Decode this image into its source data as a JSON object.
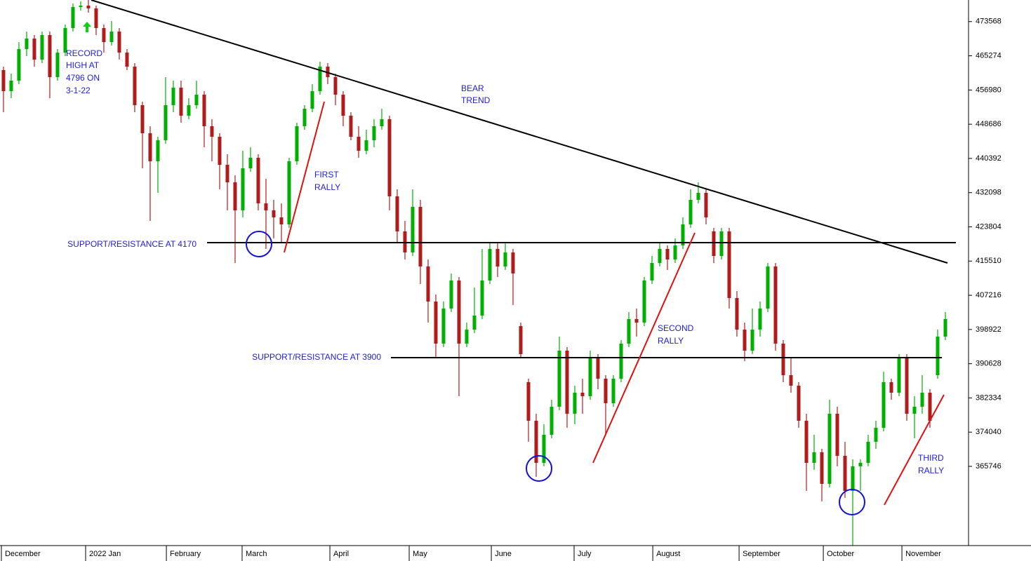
{
  "chart_data": {
    "type": "candlestick",
    "up_color": "#00b000",
    "down_color": "#b01c1c",
    "xlim": [
      -0.45,
      125
    ],
    "ylim": [
      346540,
      478800
    ],
    "yticks": [
      473568,
      465274,
      456980,
      448686,
      440392,
      432098,
      423804,
      415510,
      407216,
      398922,
      390628,
      382334,
      374040,
      365746
    ],
    "xticks": [
      {
        "value": -0.27,
        "label": "December"
      },
      {
        "value": 10.64,
        "label": "2022 Jan"
      },
      {
        "value": 21.1,
        "label": "February"
      },
      {
        "value": 30.91,
        "label": "March"
      },
      {
        "value": 42.28,
        "label": "April"
      },
      {
        "value": 52.55,
        "label": "May"
      },
      {
        "value": 63.19,
        "label": "June"
      },
      {
        "value": 73.91,
        "label": "July"
      },
      {
        "value": 84.1,
        "label": "August"
      },
      {
        "value": 95.28,
        "label": "September"
      },
      {
        "value": 106.19,
        "label": "October"
      },
      {
        "value": 116.37,
        "label": "November"
      }
    ],
    "annotations": {
      "record": [
        "RECORD",
        "HIGH AT",
        "4796 ON",
        "3-1-22"
      ],
      "bear": [
        "BEAR",
        "TREND"
      ],
      "first": [
        "FIRST",
        "RALLY"
      ],
      "second": [
        "SECOND",
        "RALLY"
      ],
      "third": [
        "THIRD",
        "RALLY"
      ],
      "support_high": "SUPPORT/RESISTANCE AT 4170",
      "support_low": "SUPPORT/RESISTANCE AT 3900"
    },
    "ohlc": [
      [
        461800,
        462650,
        451600,
        456700
      ],
      [
        456700,
        460950,
        455000,
        459250
      ],
      [
        459250,
        468600,
        458400,
        466900
      ],
      [
        466900,
        471150,
        465200,
        469450
      ],
      [
        469450,
        470300,
        462650,
        464350
      ],
      [
        464350,
        471150,
        463500,
        470300
      ],
      [
        470300,
        471150,
        455000,
        460100
      ],
      [
        460100,
        466900,
        459250,
        466050
      ],
      [
        466050,
        472850,
        465200,
        472000
      ],
      [
        472000,
        477950,
        471150,
        477100
      ],
      [
        477100,
        478460,
        476250,
        477440
      ],
      [
        477440,
        478800,
        475740,
        476760
      ],
      [
        476760,
        477440,
        470300,
        472000
      ],
      [
        472000,
        472850,
        466050,
        468600
      ],
      [
        468600,
        473700,
        467750,
        471150
      ],
      [
        471150,
        472000,
        464350,
        466050
      ],
      [
        466050,
        466900,
        461800,
        462650
      ],
      [
        462650,
        463500,
        451600,
        453300
      ],
      [
        453300,
        454150,
        438000,
        446500
      ],
      [
        446500,
        448200,
        425250,
        439700
      ],
      [
        439700,
        445650,
        432050,
        444800
      ],
      [
        444800,
        460100,
        443950,
        453300
      ],
      [
        453300,
        459250,
        451600,
        457550
      ],
      [
        457550,
        459250,
        449050,
        450750
      ],
      [
        450750,
        455000,
        449900,
        453300
      ],
      [
        453300,
        459250,
        452450,
        455850
      ],
      [
        455850,
        456700,
        443100,
        448200
      ],
      [
        448200,
        449900,
        439700,
        445650
      ],
      [
        445650,
        446500,
        432900,
        438850
      ],
      [
        438850,
        441400,
        427800,
        434600
      ],
      [
        434600,
        436300,
        415050,
        427800
      ],
      [
        427800,
        442250,
        426100,
        438000
      ],
      [
        438000,
        443100,
        437150,
        440550
      ],
      [
        440550,
        441400,
        427800,
        429500
      ],
      [
        429500,
        435450,
        418450,
        427800
      ],
      [
        427800,
        430350,
        421000,
        426100
      ],
      [
        426100,
        429500,
        420150,
        424400
      ],
      [
        424400,
        440550,
        423550,
        439700
      ],
      [
        439700,
        449050,
        438850,
        448200
      ],
      [
        448200,
        453300,
        447350,
        452450
      ],
      [
        452450,
        458400,
        451600,
        456700
      ],
      [
        456700,
        463840,
        455850,
        462650
      ],
      [
        462650,
        463500,
        458400,
        460100
      ],
      [
        460100,
        460950,
        453300,
        455850
      ],
      [
        455850,
        456700,
        448200,
        450750
      ],
      [
        450750,
        451600,
        444800,
        445650
      ],
      [
        445650,
        448200,
        440550,
        442250
      ],
      [
        442250,
        447350,
        441400,
        444800
      ],
      [
        444800,
        449900,
        443100,
        448200
      ],
      [
        448200,
        452450,
        447350,
        449900
      ],
      [
        449900,
        450750,
        427800,
        431200
      ],
      [
        431200,
        432900,
        420150,
        422700
      ],
      [
        422700,
        425250,
        415900,
        417600
      ],
      [
        417600,
        432900,
        416750,
        428650
      ],
      [
        428650,
        430350,
        409950,
        414200
      ],
      [
        414200,
        415900,
        400600,
        405700
      ],
      [
        405700,
        407400,
        392100,
        395500
      ],
      [
        395500,
        405700,
        394650,
        404000
      ],
      [
        404000,
        412500,
        403150,
        410800
      ],
      [
        410800,
        411650,
        382750,
        395500
      ],
      [
        395500,
        400600,
        394650,
        398900
      ],
      [
        398900,
        409100,
        398050,
        402300
      ],
      [
        402300,
        418450,
        401450,
        410800
      ],
      [
        410800,
        420150,
        409950,
        418450
      ],
      [
        418450,
        420150,
        411650,
        414200
      ],
      [
        414200,
        420150,
        413350,
        417600
      ],
      [
        417600,
        418450,
        404850,
        412500
      ],
      [
        399750,
        400600,
        392100,
        392950
      ],
      [
        386150,
        387000,
        371700,
        376800
      ],
      [
        376800,
        378500,
        363200,
        366600
      ],
      [
        366600,
        375950,
        365750,
        373400
      ],
      [
        373400,
        381900,
        372550,
        380200
      ],
      [
        380200,
        397200,
        379350,
        393800
      ],
      [
        393800,
        394650,
        375100,
        378500
      ],
      [
        378500,
        385300,
        375950,
        383600
      ],
      [
        383600,
        387000,
        378500,
        382750
      ],
      [
        382750,
        393800,
        381900,
        392100
      ],
      [
        392100,
        392950,
        384450,
        387000
      ],
      [
        387000,
        387850,
        373400,
        381050
      ],
      [
        381050,
        387850,
        380200,
        387000
      ],
      [
        387000,
        396350,
        386150,
        395500
      ],
      [
        395500,
        403150,
        394650,
        401450
      ],
      [
        401450,
        404000,
        397200,
        400600
      ],
      [
        400600,
        411650,
        399750,
        410800
      ],
      [
        410800,
        416750,
        409950,
        415050
      ],
      [
        415050,
        420150,
        414200,
        418450
      ],
      [
        418450,
        419300,
        413350,
        415900
      ],
      [
        415900,
        421000,
        415050,
        419300
      ],
      [
        419300,
        426100,
        418450,
        424400
      ],
      [
        424400,
        432900,
        423550,
        430350
      ],
      [
        430350,
        434600,
        429500,
        432050
      ],
      [
        432050,
        432900,
        424400,
        426100
      ],
      [
        422700,
        423550,
        415050,
        416750
      ],
      [
        416750,
        423550,
        415900,
        422700
      ],
      [
        422700,
        423550,
        404000,
        406550
      ],
      [
        406550,
        408250,
        397200,
        398900
      ],
      [
        398900,
        400600,
        391250,
        393800
      ],
      [
        393800,
        404000,
        392950,
        398900
      ],
      [
        398900,
        405700,
        397200,
        404000
      ],
      [
        404000,
        415050,
        403150,
        414200
      ],
      [
        414200,
        415050,
        393800,
        395500
      ],
      [
        395500,
        396350,
        386150,
        387850
      ],
      [
        387850,
        392100,
        383600,
        385300
      ],
      [
        385300,
        386150,
        375100,
        376800
      ],
      [
        376800,
        378500,
        359800,
        366600
      ],
      [
        366600,
        373400,
        364900,
        369150
      ],
      [
        369150,
        370000,
        357250,
        361500
      ],
      [
        361500,
        381900,
        360650,
        378500
      ],
      [
        378500,
        380200,
        365750,
        368300
      ],
      [
        368300,
        371700,
        358100,
        359800
      ],
      [
        359800,
        367450,
        346550,
        365750
      ],
      [
        365750,
        367450,
        359800,
        366600
      ],
      [
        366600,
        373400,
        365750,
        371700
      ],
      [
        371700,
        376800,
        370000,
        375100
      ],
      [
        375100,
        388700,
        374250,
        386150
      ],
      [
        386150,
        387000,
        381900,
        383600
      ],
      [
        383600,
        392950,
        382750,
        392100
      ],
      [
        392100,
        392950,
        376800,
        378500
      ],
      [
        378500,
        382750,
        372550,
        380200
      ],
      [
        380200,
        387850,
        378500,
        383600
      ],
      [
        383600,
        384450,
        375100,
        376800
      ],
      [
        387850,
        398900,
        387000,
        397200
      ],
      [
        397200,
        403150,
        396350,
        401450
      ]
    ]
  }
}
